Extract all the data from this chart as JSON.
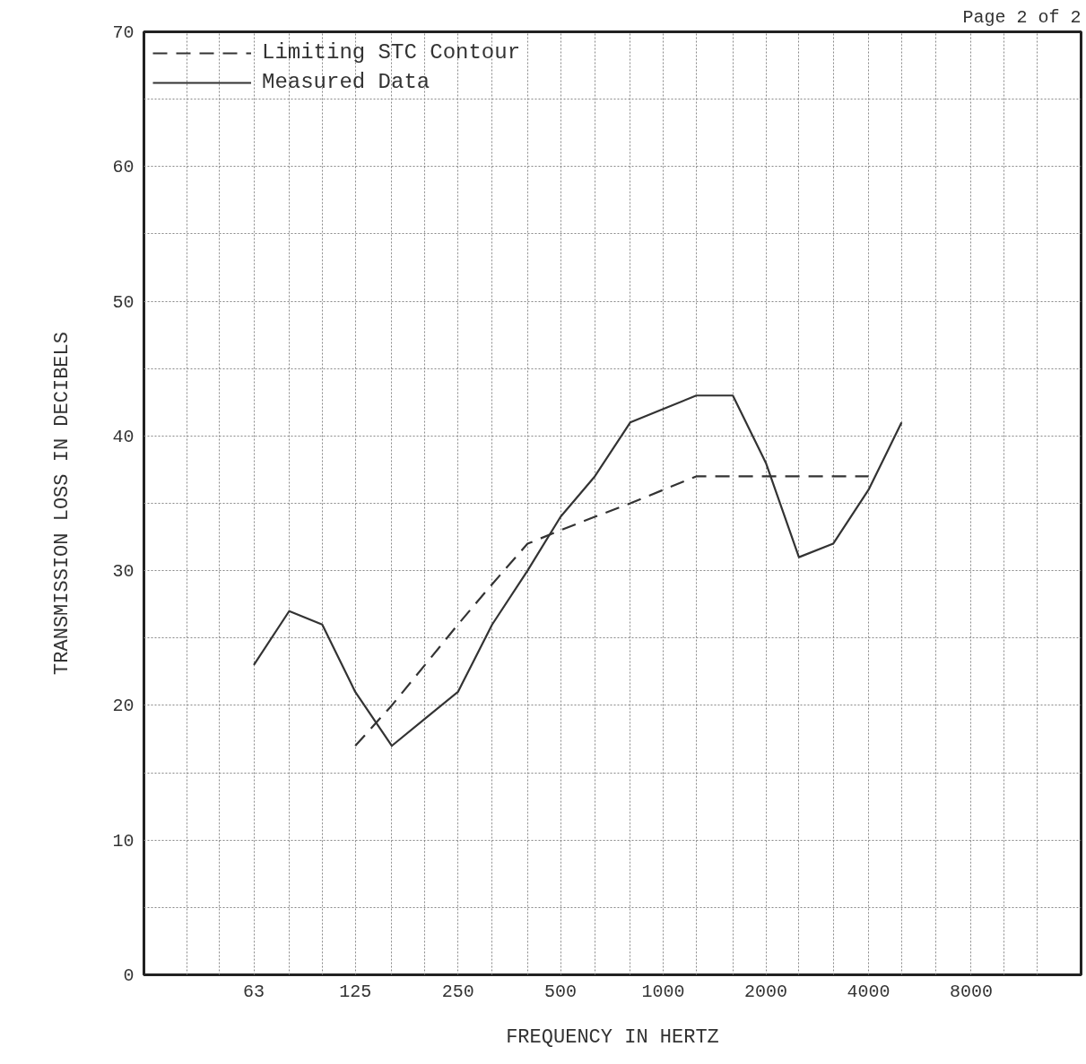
{
  "chart_data": {
    "type": "line",
    "xlabel": "FREQUENCY IN HERTZ",
    "ylabel": "TRANSMISSION LOSS IN DECIBELS",
    "annotations": [
      "Page 2 of 2"
    ],
    "log": "x",
    "grid": true,
    "legend": "top left",
    "xlim": [
      30,
      16800
    ],
    "ylim": [
      0,
      70
    ],
    "xticks": [
      {
        "value": 40,
        "label": null
      },
      {
        "value": 50,
        "label": null
      },
      {
        "value": 63,
        "label": "63"
      },
      {
        "value": 80,
        "label": null
      },
      {
        "value": 100,
        "label": null
      },
      {
        "value": 125,
        "label": "125"
      },
      {
        "value": 160,
        "label": null
      },
      {
        "value": 200,
        "label": null
      },
      {
        "value": 250,
        "label": "250"
      },
      {
        "value": 315,
        "label": null
      },
      {
        "value": 400,
        "label": null
      },
      {
        "value": 500,
        "label": "500"
      },
      {
        "value": 630,
        "label": null
      },
      {
        "value": 800,
        "label": null
      },
      {
        "value": 1000,
        "label": "1000"
      },
      {
        "value": 1250,
        "label": null
      },
      {
        "value": 1600,
        "label": null
      },
      {
        "value": 2000,
        "label": "2000"
      },
      {
        "value": 2500,
        "label": null
      },
      {
        "value": 3150,
        "label": null
      },
      {
        "value": 4000,
        "label": "4000"
      },
      {
        "value": 5000,
        "label": null
      },
      {
        "value": 6300,
        "label": null
      },
      {
        "value": 8000,
        "label": "8000"
      },
      {
        "value": 10000,
        "label": null
      },
      {
        "value": 12500,
        "label": null
      }
    ],
    "yticks": [
      0,
      {
        "value": 5,
        "label": null
      },
      10,
      {
        "value": 15,
        "label": null
      },
      20,
      {
        "value": 25,
        "label": null
      },
      30,
      {
        "value": 35,
        "label": null
      },
      40,
      {
        "value": 45,
        "label": null
      },
      50,
      {
        "value": 55,
        "label": null
      },
      60,
      {
        "value": 65,
        "label": null
      },
      70
    ],
    "series": [
      {
        "name": "Limiting STC Contour",
        "color": "#333333",
        "line_style": "dashed",
        "x": [
          125,
          160,
          200,
          250,
          315,
          400,
          500,
          630,
          800,
          1000,
          1250,
          1600,
          2000,
          2500,
          3150,
          4000
        ],
        "values": [
          17,
          20,
          23,
          26,
          29,
          32,
          33,
          34,
          35,
          36,
          37,
          37,
          37,
          37,
          37,
          37
        ]
      },
      {
        "name": "Measured Data",
        "color": "#333333",
        "line_style": "solid",
        "x": [
          63,
          80,
          100,
          125,
          160,
          200,
          250,
          315,
          400,
          500,
          630,
          800,
          1000,
          1250,
          1600,
          2000,
          2500,
          3150,
          4000,
          5000
        ],
        "values": [
          23,
          27,
          26,
          21,
          17,
          19,
          21,
          26,
          30,
          34,
          37,
          41,
          42,
          43,
          43,
          38,
          31,
          32,
          36,
          41
        ]
      }
    ]
  }
}
